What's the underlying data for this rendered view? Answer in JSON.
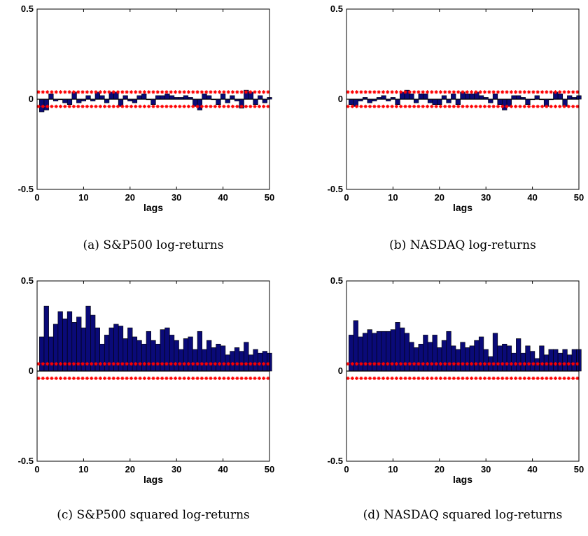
{
  "figure": {
    "panels": [
      {
        "caption": "(a) S&P500 log-returns",
        "xlabel": "lags",
        "xticks": [
          "0",
          "10",
          "20",
          "30",
          "40",
          "50"
        ],
        "yticks": [
          "0.5",
          "0",
          "-0.5"
        ]
      },
      {
        "caption": "(b) NASDAQ log-returns",
        "xlabel": "lags",
        "xticks": [
          "0",
          "10",
          "20",
          "30",
          "40",
          "50"
        ],
        "yticks": [
          "0.5",
          "0",
          "-0.5"
        ]
      },
      {
        "caption": "(c) S&P500 squared log-returns",
        "xlabel": "lags",
        "xticks": [
          "0",
          "10",
          "20",
          "30",
          "40",
          "50"
        ],
        "yticks": [
          "0.5",
          "0",
          "-0.5"
        ]
      },
      {
        "caption": "(d) NASDAQ squared log-returns",
        "xlabel": "lags",
        "xticks": [
          "0",
          "10",
          "20",
          "30",
          "40",
          "50"
        ],
        "yticks": [
          "0.5",
          "0",
          "-0.5"
        ]
      }
    ]
  },
  "colors": {
    "bar_fill": "#0a0a78",
    "bar_edge": "#000000",
    "bound": "#ff0000",
    "axis": "#000000"
  },
  "chart_data": [
    {
      "type": "bar",
      "title": "",
      "xlabel": "lags",
      "xlim": [
        0,
        50
      ],
      "ylim": [
        -0.5,
        0.5
      ],
      "x": [
        1,
        2,
        3,
        4,
        5,
        6,
        7,
        8,
        9,
        10,
        11,
        12,
        13,
        14,
        15,
        16,
        17,
        18,
        19,
        20,
        21,
        22,
        23,
        24,
        25,
        26,
        27,
        28,
        29,
        30,
        31,
        32,
        33,
        34,
        35,
        36,
        37,
        38,
        39,
        40,
        41,
        42,
        43,
        44,
        45,
        46,
        47,
        48,
        49,
        50
      ],
      "values": [
        -0.07,
        -0.06,
        0.03,
        -0.01,
        0.0,
        -0.02,
        -0.03,
        0.04,
        -0.02,
        -0.01,
        0.02,
        -0.01,
        0.04,
        0.02,
        -0.02,
        0.04,
        0.04,
        -0.04,
        0.02,
        -0.01,
        -0.02,
        0.02,
        0.03,
        0.0,
        -0.03,
        0.02,
        0.02,
        0.03,
        0.02,
        0.01,
        0.01,
        0.02,
        0.01,
        -0.04,
        -0.06,
        0.03,
        0.02,
        0.0,
        -0.03,
        0.03,
        -0.02,
        0.02,
        -0.01,
        -0.05,
        0.05,
        0.04,
        -0.03,
        0.02,
        -0.02,
        0.01
      ],
      "bounds": [
        0.04,
        -0.04
      ]
    },
    {
      "type": "bar",
      "title": "",
      "xlabel": "lags",
      "xlim": [
        0,
        50
      ],
      "ylim": [
        -0.5,
        0.5
      ],
      "x": [
        1,
        2,
        3,
        4,
        5,
        6,
        7,
        8,
        9,
        10,
        11,
        12,
        13,
        14,
        15,
        16,
        17,
        18,
        19,
        20,
        21,
        22,
        23,
        24,
        25,
        26,
        27,
        28,
        29,
        30,
        31,
        32,
        33,
        34,
        35,
        36,
        37,
        38,
        39,
        40,
        41,
        42,
        43,
        44,
        45,
        46,
        47,
        48,
        49,
        50
      ],
      "values": [
        -0.03,
        -0.04,
        -0.01,
        0.01,
        -0.02,
        -0.01,
        0.01,
        0.02,
        -0.01,
        0.01,
        -0.03,
        0.04,
        0.05,
        0.03,
        -0.02,
        0.03,
        0.03,
        -0.02,
        -0.03,
        -0.03,
        0.02,
        -0.02,
        0.03,
        -0.03,
        0.04,
        0.03,
        0.03,
        0.04,
        0.02,
        0.01,
        -0.02,
        0.03,
        -0.03,
        -0.06,
        -0.04,
        0.02,
        0.02,
        0.01,
        -0.03,
        0.0,
        0.02,
        0.0,
        -0.04,
        0.0,
        0.04,
        0.03,
        -0.04,
        0.02,
        0.01,
        0.02
      ],
      "bounds": [
        0.04,
        -0.04
      ]
    },
    {
      "type": "bar",
      "title": "",
      "xlabel": "lags",
      "xlim": [
        0,
        50
      ],
      "ylim": [
        -0.5,
        0.5
      ],
      "x": [
        1,
        2,
        3,
        4,
        5,
        6,
        7,
        8,
        9,
        10,
        11,
        12,
        13,
        14,
        15,
        16,
        17,
        18,
        19,
        20,
        21,
        22,
        23,
        24,
        25,
        26,
        27,
        28,
        29,
        30,
        31,
        32,
        33,
        34,
        35,
        36,
        37,
        38,
        39,
        40,
        41,
        42,
        43,
        44,
        45,
        46,
        47,
        48,
        49,
        50
      ],
      "values": [
        0.19,
        0.36,
        0.19,
        0.26,
        0.33,
        0.29,
        0.33,
        0.27,
        0.3,
        0.24,
        0.36,
        0.31,
        0.24,
        0.15,
        0.2,
        0.24,
        0.26,
        0.25,
        0.18,
        0.24,
        0.19,
        0.17,
        0.15,
        0.22,
        0.17,
        0.15,
        0.23,
        0.24,
        0.2,
        0.17,
        0.12,
        0.18,
        0.19,
        0.12,
        0.22,
        0.12,
        0.17,
        0.13,
        0.15,
        0.14,
        0.09,
        0.11,
        0.13,
        0.11,
        0.16,
        0.09,
        0.12,
        0.1,
        0.11,
        0.1
      ],
      "bounds": [
        0.04,
        -0.04
      ]
    },
    {
      "type": "bar",
      "title": "",
      "xlabel": "lags",
      "xlim": [
        0,
        50
      ],
      "ylim": [
        -0.5,
        0.5
      ],
      "x": [
        1,
        2,
        3,
        4,
        5,
        6,
        7,
        8,
        9,
        10,
        11,
        12,
        13,
        14,
        15,
        16,
        17,
        18,
        19,
        20,
        21,
        22,
        23,
        24,
        25,
        26,
        27,
        28,
        29,
        30,
        31,
        32,
        33,
        34,
        35,
        36,
        37,
        38,
        39,
        40,
        41,
        42,
        43,
        44,
        45,
        46,
        47,
        48,
        49,
        50
      ],
      "values": [
        0.2,
        0.28,
        0.19,
        0.21,
        0.23,
        0.21,
        0.22,
        0.22,
        0.22,
        0.23,
        0.27,
        0.24,
        0.21,
        0.16,
        0.13,
        0.15,
        0.2,
        0.16,
        0.2,
        0.13,
        0.17,
        0.22,
        0.14,
        0.12,
        0.16,
        0.13,
        0.14,
        0.17,
        0.19,
        0.12,
        0.08,
        0.21,
        0.14,
        0.15,
        0.14,
        0.1,
        0.18,
        0.1,
        0.14,
        0.11,
        0.07,
        0.14,
        0.09,
        0.12,
        0.12,
        0.1,
        0.12,
        0.09,
        0.12,
        0.12
      ],
      "bounds": [
        0.04,
        -0.04
      ]
    }
  ]
}
